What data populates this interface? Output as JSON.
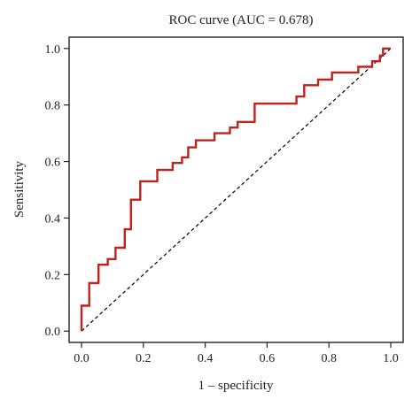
{
  "chart_data": {
    "type": "line",
    "title": "ROC curve (AUC = 0.678)",
    "xlabel": "1 – specificity",
    "ylabel": "Sensitivity",
    "xlim": [
      -0.04,
      1.04
    ],
    "ylim": [
      -0.04,
      1.04
    ],
    "xticks": [
      "0.0",
      "0.2",
      "0.4",
      "0.6",
      "0.8",
      "1.0"
    ],
    "yticks": [
      "0.0",
      "0.2",
      "0.4",
      "0.6",
      "0.8",
      "1.0"
    ],
    "grid": false,
    "legend": "none",
    "colors": {
      "roc": "#c0221d",
      "reference": "#000000"
    },
    "series": [
      {
        "style": "step",
        "points": [
          [
            0.0,
            0.0
          ],
          [
            0.0,
            0.09
          ],
          [
            0.025,
            0.09
          ],
          [
            0.025,
            0.17
          ],
          [
            0.055,
            0.17
          ],
          [
            0.055,
            0.235
          ],
          [
            0.085,
            0.235
          ],
          [
            0.085,
            0.255
          ],
          [
            0.11,
            0.255
          ],
          [
            0.11,
            0.295
          ],
          [
            0.14,
            0.295
          ],
          [
            0.14,
            0.36
          ],
          [
            0.16,
            0.36
          ],
          [
            0.16,
            0.465
          ],
          [
            0.19,
            0.465
          ],
          [
            0.19,
            0.53
          ],
          [
            0.245,
            0.53
          ],
          [
            0.245,
            0.57
          ],
          [
            0.295,
            0.57
          ],
          [
            0.295,
            0.595
          ],
          [
            0.325,
            0.595
          ],
          [
            0.325,
            0.615
          ],
          [
            0.345,
            0.615
          ],
          [
            0.345,
            0.65
          ],
          [
            0.37,
            0.65
          ],
          [
            0.37,
            0.675
          ],
          [
            0.43,
            0.675
          ],
          [
            0.43,
            0.7
          ],
          [
            0.48,
            0.7
          ],
          [
            0.48,
            0.72
          ],
          [
            0.505,
            0.72
          ],
          [
            0.505,
            0.74
          ],
          [
            0.56,
            0.74
          ],
          [
            0.56,
            0.805
          ],
          [
            0.695,
            0.805
          ],
          [
            0.695,
            0.83
          ],
          [
            0.72,
            0.83
          ],
          [
            0.72,
            0.87
          ],
          [
            0.765,
            0.87
          ],
          [
            0.765,
            0.89
          ],
          [
            0.81,
            0.89
          ],
          [
            0.81,
            0.915
          ],
          [
            0.895,
            0.915
          ],
          [
            0.895,
            0.935
          ],
          [
            0.94,
            0.935
          ],
          [
            0.94,
            0.955
          ],
          [
            0.965,
            0.955
          ],
          [
            0.965,
            0.975
          ],
          [
            0.975,
            0.975
          ],
          [
            0.975,
            1.0
          ],
          [
            1.0,
            1.0
          ]
        ]
      },
      {
        "style": "dashed",
        "points": [
          [
            0.0,
            0.0
          ],
          [
            1.0,
            1.0
          ]
        ]
      }
    ]
  }
}
